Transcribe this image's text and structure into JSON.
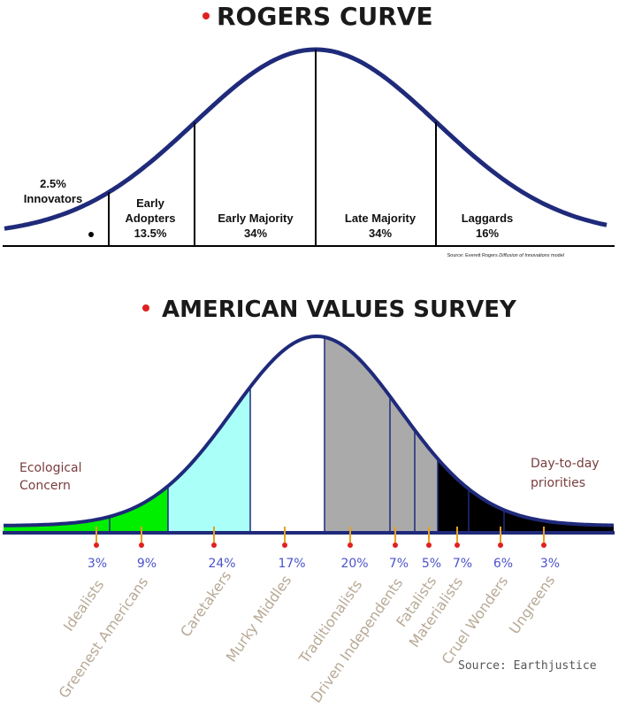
{
  "rogers": {
    "title": "ROGERS CURVE",
    "source_prefix": "Source: Everett Rogers ",
    "source_italic": "Diffusion of Innovations",
    "source_suffix": " model",
    "segments": [
      {
        "name": "Innovators",
        "pct": "2.5%"
      },
      {
        "name_line1": "Early",
        "name_line2": "Adopters",
        "pct": "13.5%"
      },
      {
        "name": "Early Majority",
        "pct": "34%"
      },
      {
        "name": "Late Majority",
        "pct": "34%"
      },
      {
        "name": "Laggards",
        "pct": "16%"
      }
    ]
  },
  "avs": {
    "title": "AMERICAN VALUES SURVEY",
    "left_note_line1": "Ecological",
    "left_note_line2": "Concern",
    "right_note_line1": "Day-to-day",
    "right_note_line2": "priorities",
    "source": "Source: Earthjustice",
    "colors": {
      "curve": "#1f2a7a",
      "green": "#00ee00",
      "cyan": "#aafff8",
      "white": "#ffffff",
      "gray": "#aaaaaa",
      "black": "#000000",
      "dot": "#e02020",
      "tick": "#e8a020"
    },
    "segments": [
      {
        "name": "Idealists",
        "pct": "3%"
      },
      {
        "name": "Greenest Americans",
        "pct": "9%"
      },
      {
        "name": "Caretakers",
        "pct": "24%"
      },
      {
        "name": "Murky Middles",
        "pct": "17%"
      },
      {
        "name": "Traditionalists",
        "pct": "20%"
      },
      {
        "name": "Driven Independents",
        "pct": "7%"
      },
      {
        "name": "Fatalists",
        "pct": "5%"
      },
      {
        "name": "Materialists",
        "pct": "7%"
      },
      {
        "name": "Cruel Wonders",
        "pct": "6%"
      },
      {
        "name": "Ungreens",
        "pct": "3%"
      }
    ]
  }
}
